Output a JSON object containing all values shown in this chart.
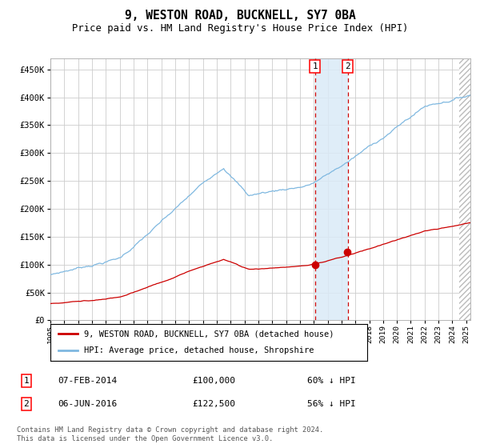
{
  "title": "9, WESTON ROAD, BUCKNELL, SY7 0BA",
  "subtitle": "Price paid vs. HM Land Registry's House Price Index (HPI)",
  "legend_line1": "9, WESTON ROAD, BUCKNELL, SY7 0BA (detached house)",
  "legend_line2": "HPI: Average price, detached house, Shropshire",
  "transaction1_date": "07-FEB-2014",
  "transaction1_price": 100000,
  "transaction1_pct": "60% ↓ HPI",
  "transaction2_date": "06-JUN-2016",
  "transaction2_price": 122500,
  "transaction2_pct": "56% ↓ HPI",
  "transaction1_year": 2014.1,
  "transaction2_year": 2016.45,
  "hpi_color": "#7fb8e0",
  "price_color": "#cc0000",
  "marker_color": "#cc0000",
  "vline_color": "#cc0000",
  "shade_color": "#daeaf7",
  "background_color": "#ffffff",
  "grid_color": "#cccccc",
  "ylim": [
    0,
    470000
  ],
  "xlim_start": 1995.0,
  "xlim_end": 2025.3,
  "hatch_start": 2024.5,
  "footer": "Contains HM Land Registry data © Crown copyright and database right 2024.\nThis data is licensed under the Open Government Licence v3.0.",
  "hatch_color": "#bbbbbb",
  "yticks": [
    0,
    50000,
    100000,
    150000,
    200000,
    250000,
    300000,
    350000,
    400000,
    450000
  ]
}
